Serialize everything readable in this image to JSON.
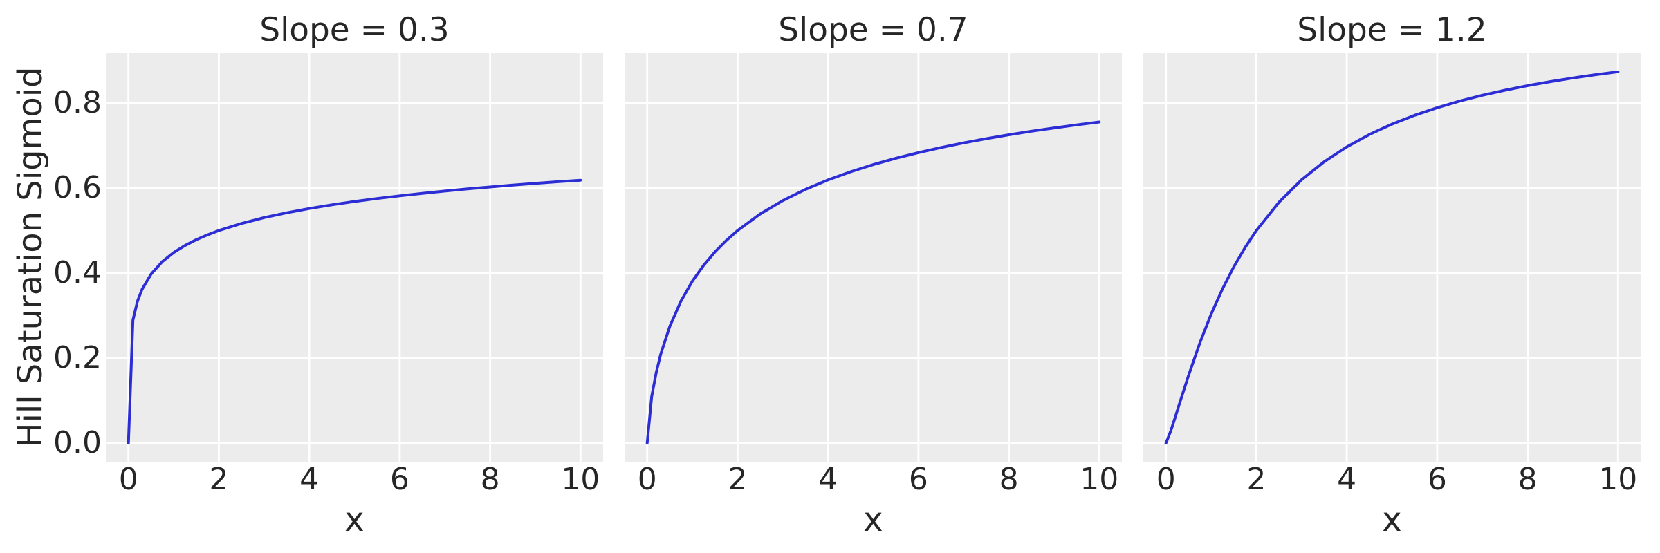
{
  "figure": {
    "ylabel": "Hill Saturation Sigmoid",
    "colors": {
      "figure_background": "#ffffff",
      "axes_background": "#ececec",
      "grid": "#ffffff",
      "line": "#2d2dd5",
      "text": "#262626"
    },
    "x_tick_labels": [
      "0",
      "2",
      "4",
      "6",
      "8",
      "10"
    ],
    "y_tick_labels": [
      "0.0",
      "0.2",
      "0.4",
      "0.6",
      "0.8"
    ]
  },
  "chart_data": [
    {
      "type": "line",
      "title": "Slope = 0.3",
      "xlabel": "x",
      "ylabel": "Hill Saturation Sigmoid",
      "legend": "none",
      "grid": true,
      "xlim": [
        -0.5,
        10.5
      ],
      "ylim": [
        -0.0437,
        0.917
      ],
      "x_ticks": [
        0,
        2,
        4,
        6,
        8,
        10
      ],
      "y_ticks": [
        0.0,
        0.2,
        0.4,
        0.6,
        0.8
      ],
      "x_tick_labels": [
        "0",
        "2",
        "4",
        "6",
        "8",
        "10"
      ],
      "x": [
        0,
        0.1,
        0.2,
        0.3,
        0.5,
        0.75,
        1,
        1.25,
        1.5,
        1.75,
        2,
        2.5,
        3,
        3.5,
        4,
        4.5,
        5,
        5.5,
        6,
        6.5,
        7,
        7.5,
        8,
        8.5,
        9,
        9.5,
        10
      ],
      "y": [
        0,
        0.2893,
        0.3339,
        0.3614,
        0.3975,
        0.427,
        0.4482,
        0.4648,
        0.4784,
        0.49,
        0.5,
        0.5167,
        0.5304,
        0.5419,
        0.5518,
        0.5605,
        0.5683,
        0.5753,
        0.5816,
        0.5875,
        0.5929,
        0.5979,
        0.6025,
        0.6069,
        0.611,
        0.6148,
        0.6184
      ]
    },
    {
      "type": "line",
      "title": "Slope = 0.7",
      "xlabel": "x",
      "ylabel": "Hill Saturation Sigmoid",
      "legend": "none",
      "grid": true,
      "xlim": [
        -0.5,
        10.5
      ],
      "ylim": [
        -0.0437,
        0.917
      ],
      "x_ticks": [
        0,
        2,
        4,
        6,
        8,
        10
      ],
      "y_ticks": [
        0.0,
        0.2,
        0.4,
        0.6,
        0.8
      ],
      "x_tick_labels": [
        "0",
        "2",
        "4",
        "6",
        "8",
        "10"
      ],
      "x": [
        0,
        0.1,
        0.2,
        0.3,
        0.5,
        0.75,
        1,
        1.25,
        1.5,
        1.75,
        2,
        2.5,
        3,
        3.5,
        4,
        4.5,
        5,
        5.5,
        6,
        6.5,
        7,
        7.5,
        8,
        8.5,
        9,
        9.5,
        10
      ],
      "y": [
        0,
        0.1094,
        0.1663,
        0.2095,
        0.2748,
        0.3348,
        0.381,
        0.4185,
        0.4498,
        0.4766,
        0.5,
        0.539,
        0.5705,
        0.5967,
        0.619,
        0.6382,
        0.6551,
        0.67,
        0.6833,
        0.6953,
        0.7062,
        0.7161,
        0.7252,
        0.7336,
        0.7413,
        0.7485,
        0.7552
      ]
    },
    {
      "type": "line",
      "title": "Slope = 1.2",
      "xlabel": "x",
      "ylabel": "Hill Saturation Sigmoid",
      "legend": "none",
      "grid": true,
      "xlim": [
        -0.5,
        10.5
      ],
      "ylim": [
        -0.0437,
        0.917
      ],
      "x_ticks": [
        0,
        2,
        4,
        6,
        8,
        10
      ],
      "y_ticks": [
        0.0,
        0.2,
        0.4,
        0.6,
        0.8
      ],
      "x_tick_labels": [
        "0",
        "2",
        "4",
        "6",
        "8",
        "10"
      ],
      "x": [
        0,
        0.1,
        0.2,
        0.3,
        0.5,
        0.75,
        1,
        1.25,
        1.5,
        1.75,
        2,
        2.5,
        3,
        3.5,
        4,
        4.5,
        5,
        5.5,
        6,
        6.5,
        7,
        7.5,
        8,
        8.5,
        9,
        9.5,
        10
      ],
      "y": [
        0,
        0.0267,
        0.0593,
        0.0931,
        0.1593,
        0.2356,
        0.3033,
        0.3626,
        0.4145,
        0.46,
        0.5,
        0.5665,
        0.6193,
        0.6619,
        0.6967,
        0.7258,
        0.7502,
        0.771,
        0.7889,
        0.8045,
        0.8181,
        0.8301,
        0.8407,
        0.8502,
        0.8588,
        0.8664,
        0.8734
      ]
    }
  ]
}
